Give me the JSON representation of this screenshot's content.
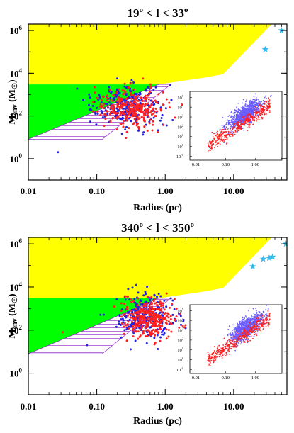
{
  "figure": {
    "colors": {
      "yellow_region": "#ffff00",
      "green_region": "#00ff00",
      "hatch": "#9933cc",
      "red_points": "#ff2020",
      "blue_points": "#2020e0",
      "stars": "#33bbee",
      "inset_points_blue": "#6a5cff"
    }
  },
  "chart_data": [
    {
      "type": "scatter",
      "title_base": "19",
      "title_sup": "o",
      "title_mid": " < l < ",
      "title_end": "33",
      "title_sup2": "o",
      "xlabel": "Radius (pc)",
      "ylabel_main": "M",
      "ylabel_sub": "env",
      "ylabel_unit": "(M",
      "ylabel_unit_end": ")",
      "x_scale": "log",
      "y_scale": "log",
      "xlim": [
        0.01,
        60
      ],
      "ylim": [
        0.1,
        2000000
      ],
      "x_ticks": [
        "0.01",
        "0.10",
        "1.00",
        "10.00"
      ],
      "y_ticks": [
        {
          "base": "10",
          "exp": "0"
        },
        {
          "base": "10",
          "exp": "2"
        },
        {
          "base": "10",
          "exp": "4"
        },
        {
          "base": "10",
          "exp": "6"
        }
      ],
      "stars": [
        {
          "x": 50,
          "y": 1000000
        },
        {
          "x": 29,
          "y": 130000
        }
      ],
      "red_cluster": {
        "x_center": 0.33,
        "x_spread_dex": 0.22,
        "y_center": 250,
        "y_spread_dex": 0.45,
        "count": 320
      },
      "blue_cluster": {
        "x_center": 0.28,
        "x_spread_dex": 0.24,
        "y_center": 300,
        "y_spread_dex": 0.45,
        "count": 300
      },
      "stray_points": [
        {
          "x": 0.027,
          "y": 2,
          "c": "blue"
        },
        {
          "x": 0.85,
          "y": 60,
          "c": "blue"
        }
      ],
      "inset": {
        "x_ticks": [
          "0.01",
          "0.10",
          "1.00"
        ],
        "y_ticks": [
          {
            "base": "10",
            "exp": "-1"
          },
          {
            "base": "10",
            "exp": "0"
          },
          {
            "base": "10",
            "exp": "1"
          },
          {
            "base": "10",
            "exp": "2"
          },
          {
            "base": "10",
            "exp": "3"
          },
          {
            "base": "10",
            "exp": "4"
          },
          {
            "base": "10",
            "exp": "5"
          }
        ]
      }
    },
    {
      "type": "scatter",
      "title_base": "340",
      "title_sup": "o",
      "title_mid": " < l < ",
      "title_end": "350",
      "title_sup2": "o",
      "xlabel": "Radius (pc)",
      "ylabel_main": "M",
      "ylabel_sub": "env",
      "ylabel_unit": "(M",
      "ylabel_unit_end": ")",
      "x_scale": "log",
      "y_scale": "log",
      "xlim": [
        0.01,
        60
      ],
      "ylim": [
        0.1,
        2000000
      ],
      "x_ticks": [
        "0.01",
        "0.10",
        "1.00",
        "10.00"
      ],
      "y_ticks": [
        {
          "base": "10",
          "exp": "0"
        },
        {
          "base": "10",
          "exp": "2"
        },
        {
          "base": "10",
          "exp": "4"
        },
        {
          "base": "10",
          "exp": "6"
        }
      ],
      "stars": [
        {
          "x": 58,
          "y": 1000000
        },
        {
          "x": 19,
          "y": 90000
        },
        {
          "x": 27,
          "y": 200000
        },
        {
          "x": 33,
          "y": 220000
        },
        {
          "x": 37,
          "y": 250000
        }
      ],
      "red_cluster": {
        "x_center": 0.62,
        "x_spread_dex": 0.18,
        "y_center": 350,
        "y_spread_dex": 0.45,
        "count": 340
      },
      "blue_cluster": {
        "x_center": 0.5,
        "x_spread_dex": 0.2,
        "y_center": 450,
        "y_spread_dex": 0.45,
        "count": 280
      },
      "stray_points": [
        {
          "x": 0.032,
          "y": 80,
          "c": "red"
        },
        {
          "x": 0.072,
          "y": 20,
          "c": "blue"
        }
      ],
      "inset": {
        "x_ticks": [
          "0.01",
          "0.10",
          "1.00"
        ],
        "y_ticks": [
          {
            "base": "10",
            "exp": "-1"
          },
          {
            "base": "10",
            "exp": "0"
          },
          {
            "base": "10",
            "exp": "1"
          },
          {
            "base": "10",
            "exp": "2"
          },
          {
            "base": "10",
            "exp": "3"
          },
          {
            "base": "10",
            "exp": "4"
          },
          {
            "base": "10",
            "exp": "5"
          }
        ]
      }
    }
  ]
}
